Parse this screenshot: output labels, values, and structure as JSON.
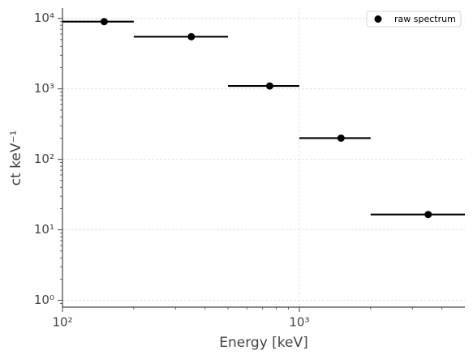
{
  "chart_data": {
    "type": "scatter",
    "xlabel": "Energy [keV]",
    "ylabel": "ct keV⁻¹",
    "xscale": "log",
    "yscale": "log",
    "xlim": [
      100,
      5000
    ],
    "ylim": [
      0.8,
      14000
    ],
    "xticks": [
      {
        "value": 100,
        "label": "10²"
      },
      {
        "value": 1000,
        "label": "10³"
      }
    ],
    "yticks": [
      {
        "value": 1,
        "label": "10⁰"
      },
      {
        "value": 10,
        "label": "10¹"
      },
      {
        "value": 100,
        "label": "10²"
      },
      {
        "value": 1000,
        "label": "10³"
      },
      {
        "value": 10000,
        "label": "10⁴"
      }
    ],
    "xminor": [
      200,
      300,
      400,
      500,
      600,
      700,
      800,
      900,
      2000,
      3000,
      4000
    ],
    "yminor": [
      0.9,
      2,
      3,
      4,
      5,
      6,
      7,
      8,
      9,
      20,
      30,
      40,
      50,
      60,
      70,
      80,
      90,
      200,
      300,
      400,
      500,
      600,
      700,
      800,
      900,
      2000,
      3000,
      4000,
      5000,
      6000,
      7000,
      8000,
      9000
    ],
    "grid": true,
    "legend": "upper right",
    "series": [
      {
        "name": "raw spectrum",
        "color": "#000000",
        "x": [
          150,
          350,
          750,
          1500,
          3500
        ],
        "values": [
          9000,
          5500,
          1100,
          200,
          16.5
        ],
        "bin_edges": [
          100,
          200,
          500,
          1000,
          2000,
          5000
        ]
      }
    ]
  }
}
